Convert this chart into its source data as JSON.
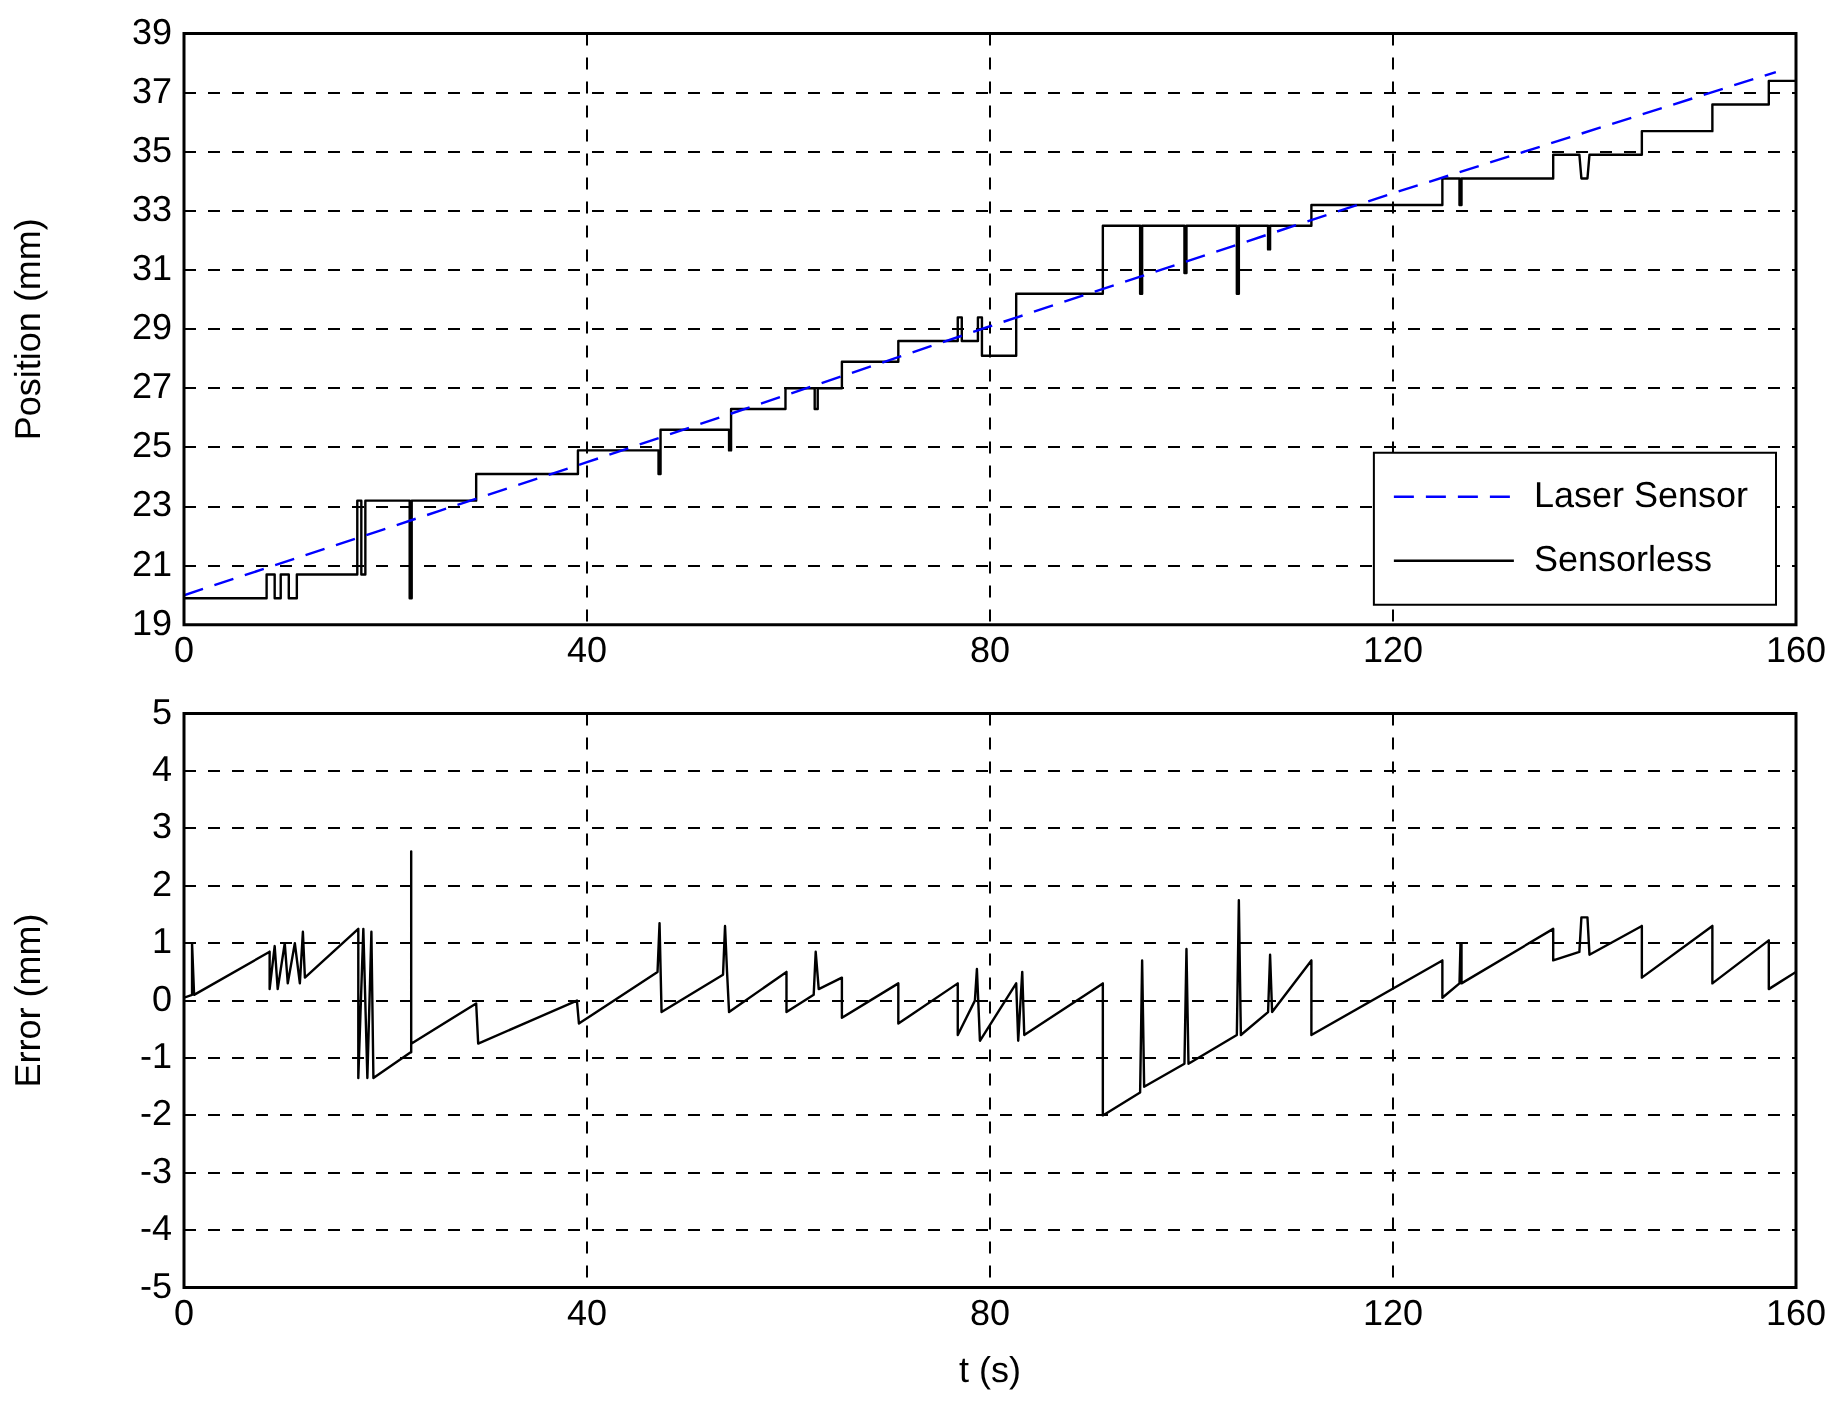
{
  "chart_data": [
    {
      "type": "line",
      "ylabel": "Position (mm)",
      "xlim": [
        0,
        160
      ],
      "xticks": [
        0,
        40,
        80,
        120,
        160
      ],
      "ylim": [
        19,
        39
      ],
      "yticks": [
        19,
        21,
        23,
        25,
        27,
        29,
        31,
        33,
        35,
        37,
        39
      ],
      "grid": true,
      "legend": "bottom right",
      "marker": "none",
      "series": [
        {
          "name": "Laser Sensor",
          "color": "#0000ff",
          "line_style": "dashed",
          "x": [
            0,
            40,
            80,
            120,
            158
          ],
          "values": [
            20.0,
            24.5,
            29.1,
            33.6,
            37.7
          ]
        },
        {
          "name": "Sensorless",
          "color": "#000000",
          "line_style": "solid",
          "x": [
            0,
            0.8,
            0.8,
            8.2,
            8.2,
            9,
            9,
            9.6,
            9.6,
            10.4,
            10.4,
            11.2,
            11.2,
            17.2,
            17.2,
            17.6,
            17.6,
            18,
            18,
            22.4,
            22.4,
            22.6,
            22.6,
            29,
            29,
            39.1,
            39.1,
            47.1,
            47.1,
            47.3,
            47.3,
            54.1,
            54.1,
            54.3,
            54.3,
            59.7,
            59.7,
            62.6,
            62.6,
            62.9,
            62.9,
            65.3,
            65.3,
            70.9,
            70.9,
            76.8,
            76.8,
            77.2,
            77.2,
            78.8,
            78.8,
            79.2,
            79.2,
            82.6,
            82.6,
            91.2,
            91.2,
            94.9,
            94.9,
            95.1,
            95.1,
            99.3,
            99.3,
            99.5,
            99.5,
            104.5,
            104.5,
            104.7,
            104.7,
            107.6,
            107.6,
            107.8,
            107.8,
            111.9,
            111.9,
            124.9,
            124.9,
            126.6,
            126.6,
            126.8,
            126.8,
            135.9,
            135.9,
            138.5,
            138.7,
            139.3,
            139.5,
            144.7,
            144.7,
            151.7,
            151.7,
            157.3,
            157.3,
            160
          ],
          "values": [
            19.9,
            19.9,
            19.9,
            19.9,
            20.7,
            20.7,
            19.9,
            19.9,
            20.7,
            20.7,
            19.9,
            19.9,
            20.7,
            20.7,
            23.2,
            23.2,
            20.7,
            20.7,
            23.2,
            23.2,
            19.9,
            19.9,
            23.2,
            23.2,
            24.1,
            24.1,
            24.9,
            24.9,
            24.1,
            24.1,
            25.6,
            25.6,
            24.9,
            24.9,
            26.3,
            26.3,
            27.0,
            27.0,
            26.3,
            26.3,
            27.0,
            27.0,
            27.9,
            27.9,
            28.6,
            28.6,
            29.4,
            29.4,
            28.6,
            28.6,
            29.4,
            29.4,
            28.1,
            28.1,
            30.2,
            30.2,
            32.5,
            32.5,
            30.2,
            30.2,
            32.5,
            32.5,
            30.9,
            30.9,
            32.5,
            32.5,
            30.2,
            30.2,
            32.5,
            32.5,
            31.7,
            31.7,
            32.5,
            32.5,
            33.2,
            33.2,
            34.1,
            34.1,
            33.2,
            33.2,
            34.1,
            34.1,
            34.9,
            34.9,
            34.1,
            34.1,
            34.9,
            34.9,
            35.7,
            35.7,
            36.6,
            36.6,
            37.4,
            37.4
          ]
        }
      ]
    },
    {
      "type": "line",
      "xlabel": "t (s)",
      "ylabel": "Error (mm)",
      "xlim": [
        0,
        160
      ],
      "xticks": [
        0,
        40,
        80,
        120,
        160
      ],
      "ylim": [
        -5,
        5
      ],
      "yticks": [
        -5,
        -4,
        -3,
        -2,
        -1,
        0,
        1,
        2,
        3,
        4,
        5
      ],
      "grid": true,
      "marker": "none",
      "series": [
        {
          "color": "#000000",
          "line_style": "solid",
          "x": [
            0,
            0.8,
            0.8,
            1,
            8.5,
            8.5,
            9,
            9.3,
            10,
            10.3,
            11,
            11.5,
            11.8,
            12,
            17.3,
            17.3,
            17.8,
            18.2,
            18.6,
            18.8,
            22.5,
            22.5,
            22.6,
            29,
            29.2,
            39,
            39.2,
            47,
            47.2,
            47.4,
            53.5,
            53.7,
            53.9,
            54.1,
            59.8,
            59.8,
            62.5,
            62.7,
            63,
            65.3,
            65.3,
            70.9,
            70.9,
            76.8,
            76.8,
            78.5,
            78.7,
            79,
            82.6,
            82.8,
            83.2,
            83.4,
            91.2,
            91.2,
            94.9,
            95.1,
            95.3,
            99.3,
            99.5,
            99.7,
            104.5,
            104.7,
            104.9,
            107.6,
            107.8,
            108,
            111.9,
            111.9,
            124.9,
            124.9,
            126.6,
            126.7,
            126.8,
            135.9,
            135.9,
            138.5,
            138.7,
            139.3,
            139.5,
            144.7,
            144.7,
            151.7,
            151.7,
            157.3,
            157.3,
            160
          ],
          "values": [
            0.05,
            0.1,
            1.0,
            0.1,
            0.85,
            0.2,
            0.95,
            0.2,
            1.0,
            0.3,
            1.0,
            0.3,
            1.2,
            0.4,
            1.25,
            -1.35,
            1.25,
            -1.35,
            1.2,
            -1.35,
            -0.9,
            2.6,
            -0.75,
            -0.05,
            -0.75,
            0.0,
            -0.4,
            0.5,
            1.35,
            -0.2,
            0.45,
            1.3,
            0.5,
            -0.2,
            0.5,
            -0.2,
            0.1,
            0.85,
            0.2,
            0.4,
            -0.3,
            0.3,
            -0.4,
            0.3,
            -0.6,
            0.0,
            0.55,
            -0.7,
            0.3,
            -0.7,
            0.5,
            -0.6,
            0.3,
            -2.0,
            -1.6,
            0.7,
            -1.5,
            -1.1,
            0.9,
            -1.1,
            -0.6,
            1.75,
            -0.6,
            -0.2,
            0.8,
            -0.2,
            0.7,
            -0.6,
            0.7,
            0.05,
            0.3,
            1.0,
            0.3,
            1.25,
            0.7,
            0.85,
            1.45,
            1.45,
            0.8,
            1.3,
            0.4,
            1.3,
            0.3,
            1.05,
            0.2,
            0.5
          ]
        }
      ]
    }
  ]
}
